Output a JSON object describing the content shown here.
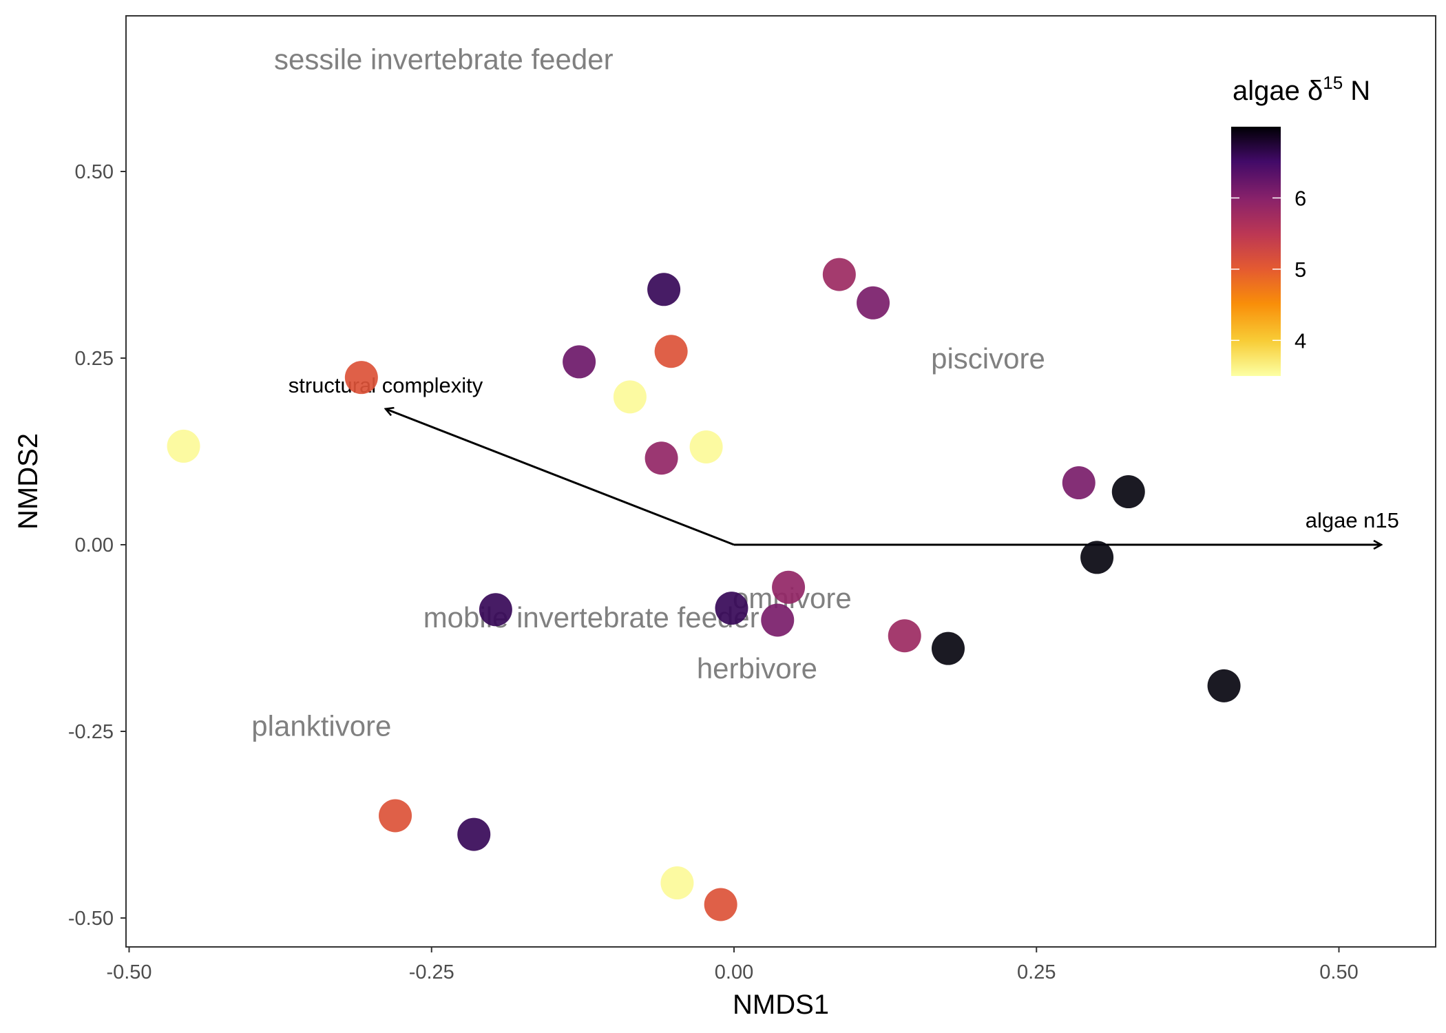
{
  "chart_data": {
    "type": "scatter",
    "xlabel": "NMDS1",
    "ylabel": "NMDS2",
    "xlim": [
      -0.505,
      0.58
    ],
    "ylim": [
      -0.54,
      0.7
    ],
    "x_ticks": [
      -0.5,
      -0.25,
      0.0,
      0.25,
      0.5
    ],
    "x_tick_labels": [
      "-0.50",
      "-0.25",
      "0.00",
      "0.25",
      "0.50"
    ],
    "y_ticks": [
      -0.5,
      -0.25,
      0.0,
      0.25,
      0.5
    ],
    "y_tick_labels": [
      "-0.50",
      "-0.25",
      "0.00",
      "0.25",
      "0.50"
    ],
    "grid": false,
    "color_scale": {
      "palette": "inferno",
      "range": [
        3.5,
        7.0
      ],
      "ticks": [
        4,
        5,
        6
      ],
      "tick_labels": [
        "4",
        "5",
        "6"
      ]
    },
    "legend": {
      "title_main": "algae ",
      "title_symbol": "δ",
      "title_sup": "15",
      "title_tail": " N",
      "placement": "top-right"
    },
    "points": [
      {
        "x": -0.455,
        "y": 0.132,
        "value": 3.55
      },
      {
        "x": -0.308,
        "y": 0.224,
        "value": 5.1
      },
      {
        "x": -0.28,
        "y": -0.363,
        "value": 5.1
      },
      {
        "x": -0.215,
        "y": -0.388,
        "value": 6.6
      },
      {
        "x": -0.197,
        "y": -0.087,
        "value": 6.6
      },
      {
        "x": -0.128,
        "y": 0.245,
        "value": 6.2
      },
      {
        "x": -0.086,
        "y": 0.198,
        "value": 3.55
      },
      {
        "x": -0.058,
        "y": 0.342,
        "value": 6.6
      },
      {
        "x": -0.06,
        "y": 0.116,
        "value": 5.9
      },
      {
        "x": -0.052,
        "y": 0.259,
        "value": 5.1
      },
      {
        "x": -0.023,
        "y": 0.131,
        "value": 3.55
      },
      {
        "x": -0.047,
        "y": -0.453,
        "value": 3.55
      },
      {
        "x": -0.011,
        "y": -0.482,
        "value": 5.1
      },
      {
        "x": -0.002,
        "y": -0.085,
        "value": 6.6
      },
      {
        "x": 0.036,
        "y": -0.101,
        "value": 6.1
      },
      {
        "x": 0.045,
        "y": -0.057,
        "value": 5.9
      },
      {
        "x": 0.087,
        "y": 0.362,
        "value": 5.8
      },
      {
        "x": 0.115,
        "y": 0.324,
        "value": 6.1
      },
      {
        "x": 0.141,
        "y": -0.122,
        "value": 5.8
      },
      {
        "x": 0.177,
        "y": -0.139,
        "value": 7.0
      },
      {
        "x": 0.285,
        "y": 0.083,
        "value": 6.1
      },
      {
        "x": 0.3,
        "y": -0.017,
        "value": 7.0
      },
      {
        "x": 0.326,
        "y": 0.071,
        "value": 7.0
      },
      {
        "x": 0.405,
        "y": -0.189,
        "value": 7.0
      }
    ],
    "vectors": [
      {
        "label": "structural complexity",
        "x_end": -0.288,
        "y_end": 0.182,
        "label_x": -0.288,
        "label_y": 0.214
      },
      {
        "label": "algae n15",
        "x_end": 0.535,
        "y_end": 0.0,
        "label_x": 0.511,
        "label_y": 0.033
      }
    ],
    "annotations": [
      {
        "text": "sessile invertebrate feeder",
        "x": -0.24,
        "y": 0.65
      },
      {
        "text": "piscivore",
        "x": 0.21,
        "y": 0.249
      },
      {
        "text": "omnivore",
        "x": 0.048,
        "y": -0.072
      },
      {
        "text": "mobile invertebrate feeder",
        "x": -0.118,
        "y": -0.098
      },
      {
        "text": "herbivore",
        "x": 0.019,
        "y": -0.166
      },
      {
        "text": "planktivore",
        "x": -0.341,
        "y": -0.243
      }
    ]
  }
}
